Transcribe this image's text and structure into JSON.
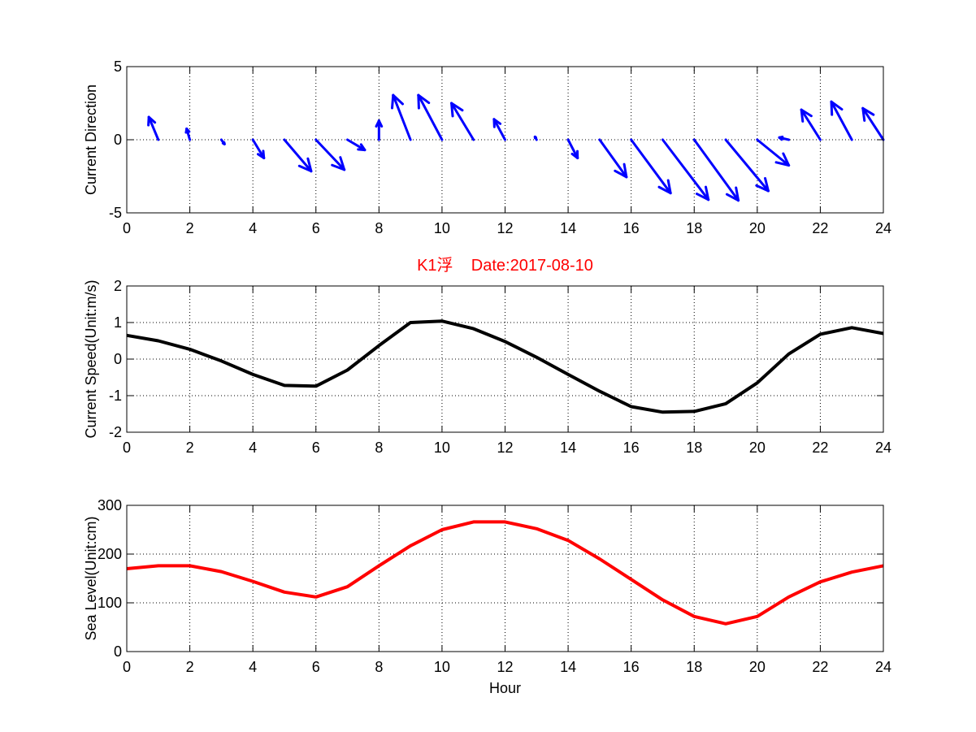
{
  "chart_data": [
    {
      "type": "quiver",
      "ylabel": "Current Direction",
      "xlabel": "",
      "xlim": [
        0,
        24
      ],
      "ylim": [
        -5,
        5
      ],
      "xticks": [
        0,
        2,
        4,
        6,
        8,
        10,
        12,
        14,
        16,
        18,
        20,
        22,
        24
      ],
      "yticks": [
        -5,
        0,
        5
      ],
      "grid": "dotted",
      "color": "#0000ff",
      "vectors": [
        {
          "x": 1,
          "u": -0.3,
          "v": 1.55
        },
        {
          "x": 2,
          "u": -0.1,
          "v": 0.75
        },
        {
          "x": 3,
          "u": 0.1,
          "v": -0.3
        },
        {
          "x": 4,
          "u": 0.35,
          "v": -1.25
        },
        {
          "x": 5,
          "u": 0.85,
          "v": -2.15
        },
        {
          "x": 6,
          "u": 0.9,
          "v": -2.05
        },
        {
          "x": 7,
          "u": 0.55,
          "v": -0.7
        },
        {
          "x": 8,
          "u": 0.0,
          "v": 1.3
        },
        {
          "x": 9,
          "u": -0.55,
          "v": 3.05
        },
        {
          "x": 10,
          "u": -0.75,
          "v": 3.05
        },
        {
          "x": 11,
          "u": -0.7,
          "v": 2.5
        },
        {
          "x": 12,
          "u": -0.35,
          "v": 1.4
        },
        {
          "x": 13,
          "u": -0.05,
          "v": 0.2
        },
        {
          "x": 14,
          "u": 0.3,
          "v": -1.25
        },
        {
          "x": 15,
          "u": 0.85,
          "v": -2.55
        },
        {
          "x": 16,
          "u": 1.25,
          "v": -3.65
        },
        {
          "x": 17,
          "u": 1.45,
          "v": -4.1
        },
        {
          "x": 18,
          "u": 1.4,
          "v": -4.15
        },
        {
          "x": 19,
          "u": 1.35,
          "v": -3.5
        },
        {
          "x": 20,
          "u": 1.0,
          "v": -1.75
        },
        {
          "x": 21,
          "u": -0.3,
          "v": 0.15
        },
        {
          "x": 22,
          "u": -0.6,
          "v": 2.05
        },
        {
          "x": 23,
          "u": -0.65,
          "v": 2.6
        },
        {
          "x": 24,
          "u": -0.65,
          "v": 2.15
        }
      ]
    },
    {
      "type": "line",
      "title": "K1浮    Date:2017-08-10",
      "ylabel": "Current Speed(Unit:m/s)",
      "xlabel": "",
      "xlim": [
        0,
        24
      ],
      "ylim": [
        -2,
        2
      ],
      "xticks": [
        0,
        2,
        4,
        6,
        8,
        10,
        12,
        14,
        16,
        18,
        20,
        22,
        24
      ],
      "yticks": [
        -2,
        -1,
        0,
        1,
        2
      ],
      "grid": "dotted",
      "color": "#000000",
      "x": [
        0,
        1,
        2,
        3,
        4,
        5,
        6,
        7,
        8,
        9,
        10,
        11,
        12,
        13,
        14,
        15,
        16,
        17,
        18,
        19,
        20,
        21,
        22,
        23,
        24
      ],
      "y": [
        0.65,
        0.5,
        0.27,
        -0.05,
        -0.42,
        -0.72,
        -0.74,
        -0.3,
        0.37,
        1.0,
        1.04,
        0.83,
        0.48,
        0.05,
        -0.42,
        -0.88,
        -1.3,
        -1.45,
        -1.43,
        -1.22,
        -0.65,
        0.14,
        0.68,
        0.86,
        0.7
      ]
    },
    {
      "type": "line",
      "ylabel": "Sea Level(Unit:cm)",
      "xlabel": "Hour",
      "xlim": [
        0,
        24
      ],
      "ylim": [
        0,
        300
      ],
      "xticks": [
        0,
        2,
        4,
        6,
        8,
        10,
        12,
        14,
        16,
        18,
        20,
        22,
        24
      ],
      "yticks": [
        0,
        100,
        200,
        300
      ],
      "grid": "dotted",
      "color": "#ff0000",
      "x": [
        0,
        1,
        2,
        3,
        4,
        5,
        6,
        7,
        8,
        9,
        10,
        11,
        12,
        13,
        14,
        15,
        16,
        17,
        18,
        19,
        20,
        21,
        22,
        23,
        24
      ],
      "y": [
        170,
        176,
        176,
        164,
        144,
        122,
        112,
        133,
        176,
        217,
        250,
        266,
        266,
        252,
        228,
        190,
        148,
        106,
        72,
        57,
        72,
        112,
        143,
        163,
        176
      ]
    }
  ]
}
